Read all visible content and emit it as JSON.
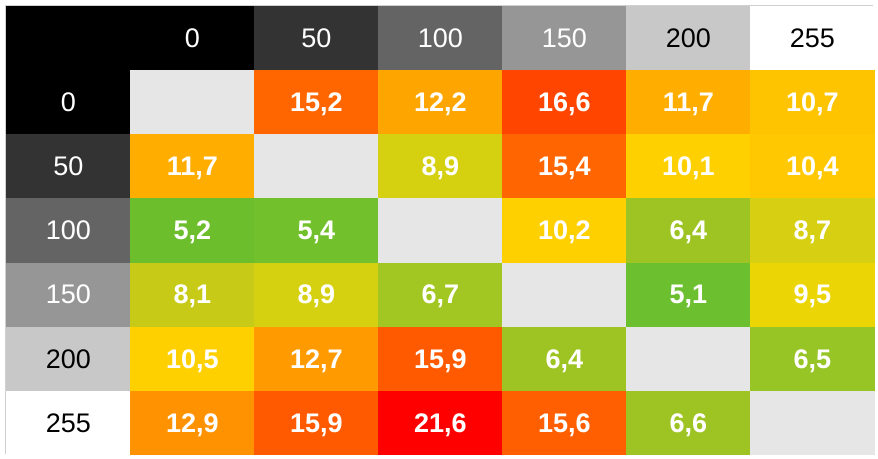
{
  "chart_data": {
    "type": "heatmap",
    "title": "",
    "xlabel": "",
    "ylabel": "",
    "x_categories": [
      "0",
      "50",
      "100",
      "150",
      "200",
      "255"
    ],
    "y_categories": [
      "0",
      "50",
      "100",
      "150",
      "200",
      "255"
    ],
    "header_colors": [
      "#000000",
      "#333333",
      "#646464",
      "#969696",
      "#c8c8c8",
      "#ffffff"
    ],
    "header_text_colors": [
      "#ffffff",
      "#ffffff",
      "#ffffff",
      "#ffffff",
      "#000000",
      "#000000"
    ],
    "diagonal_color": "#e6e6e6",
    "values": [
      [
        null,
        "15,2",
        "12,2",
        "16,6",
        "11,7",
        "10,7"
      ],
      [
        "11,7",
        null,
        "8,9",
        "15,4",
        "10,1",
        "10,4"
      ],
      [
        "5,2",
        "5,4",
        null,
        "10,2",
        "6,4",
        "8,7"
      ],
      [
        "8,1",
        "8,9",
        "6,7",
        null,
        "5,1",
        "9,5"
      ],
      [
        "10,5",
        "12,7",
        "15,9",
        "6,4",
        null,
        "6,5"
      ],
      [
        "12,9",
        "15,9",
        "21,6",
        "15,6",
        "6,6",
        null
      ]
    ],
    "cell_colors": [
      [
        "#e6e6e6",
        "#ff6600",
        "#ffa500",
        "#ff4500",
        "#ffae00",
        "#ffc400"
      ],
      [
        "#ffae00",
        "#e6e6e6",
        "#d5d010",
        "#ff6500",
        "#ffd000",
        "#ffc800"
      ],
      [
        "#6dbe2d",
        "#72c02c",
        "#e6e6e6",
        "#ffd000",
        "#9ec424",
        "#d7cf12"
      ],
      [
        "#c7cb18",
        "#d5d010",
        "#a2c723",
        "#e6e6e6",
        "#6cbf2e",
        "#ecd504"
      ],
      [
        "#ffd000",
        "#ff9a00",
        "#ff5a00",
        "#9ec424",
        "#e6e6e6",
        "#97c526"
      ],
      [
        "#ff9200",
        "#ff5a00",
        "#ff0000",
        "#ff5f00",
        "#9ec424",
        "#e6e6e6"
      ]
    ]
  }
}
